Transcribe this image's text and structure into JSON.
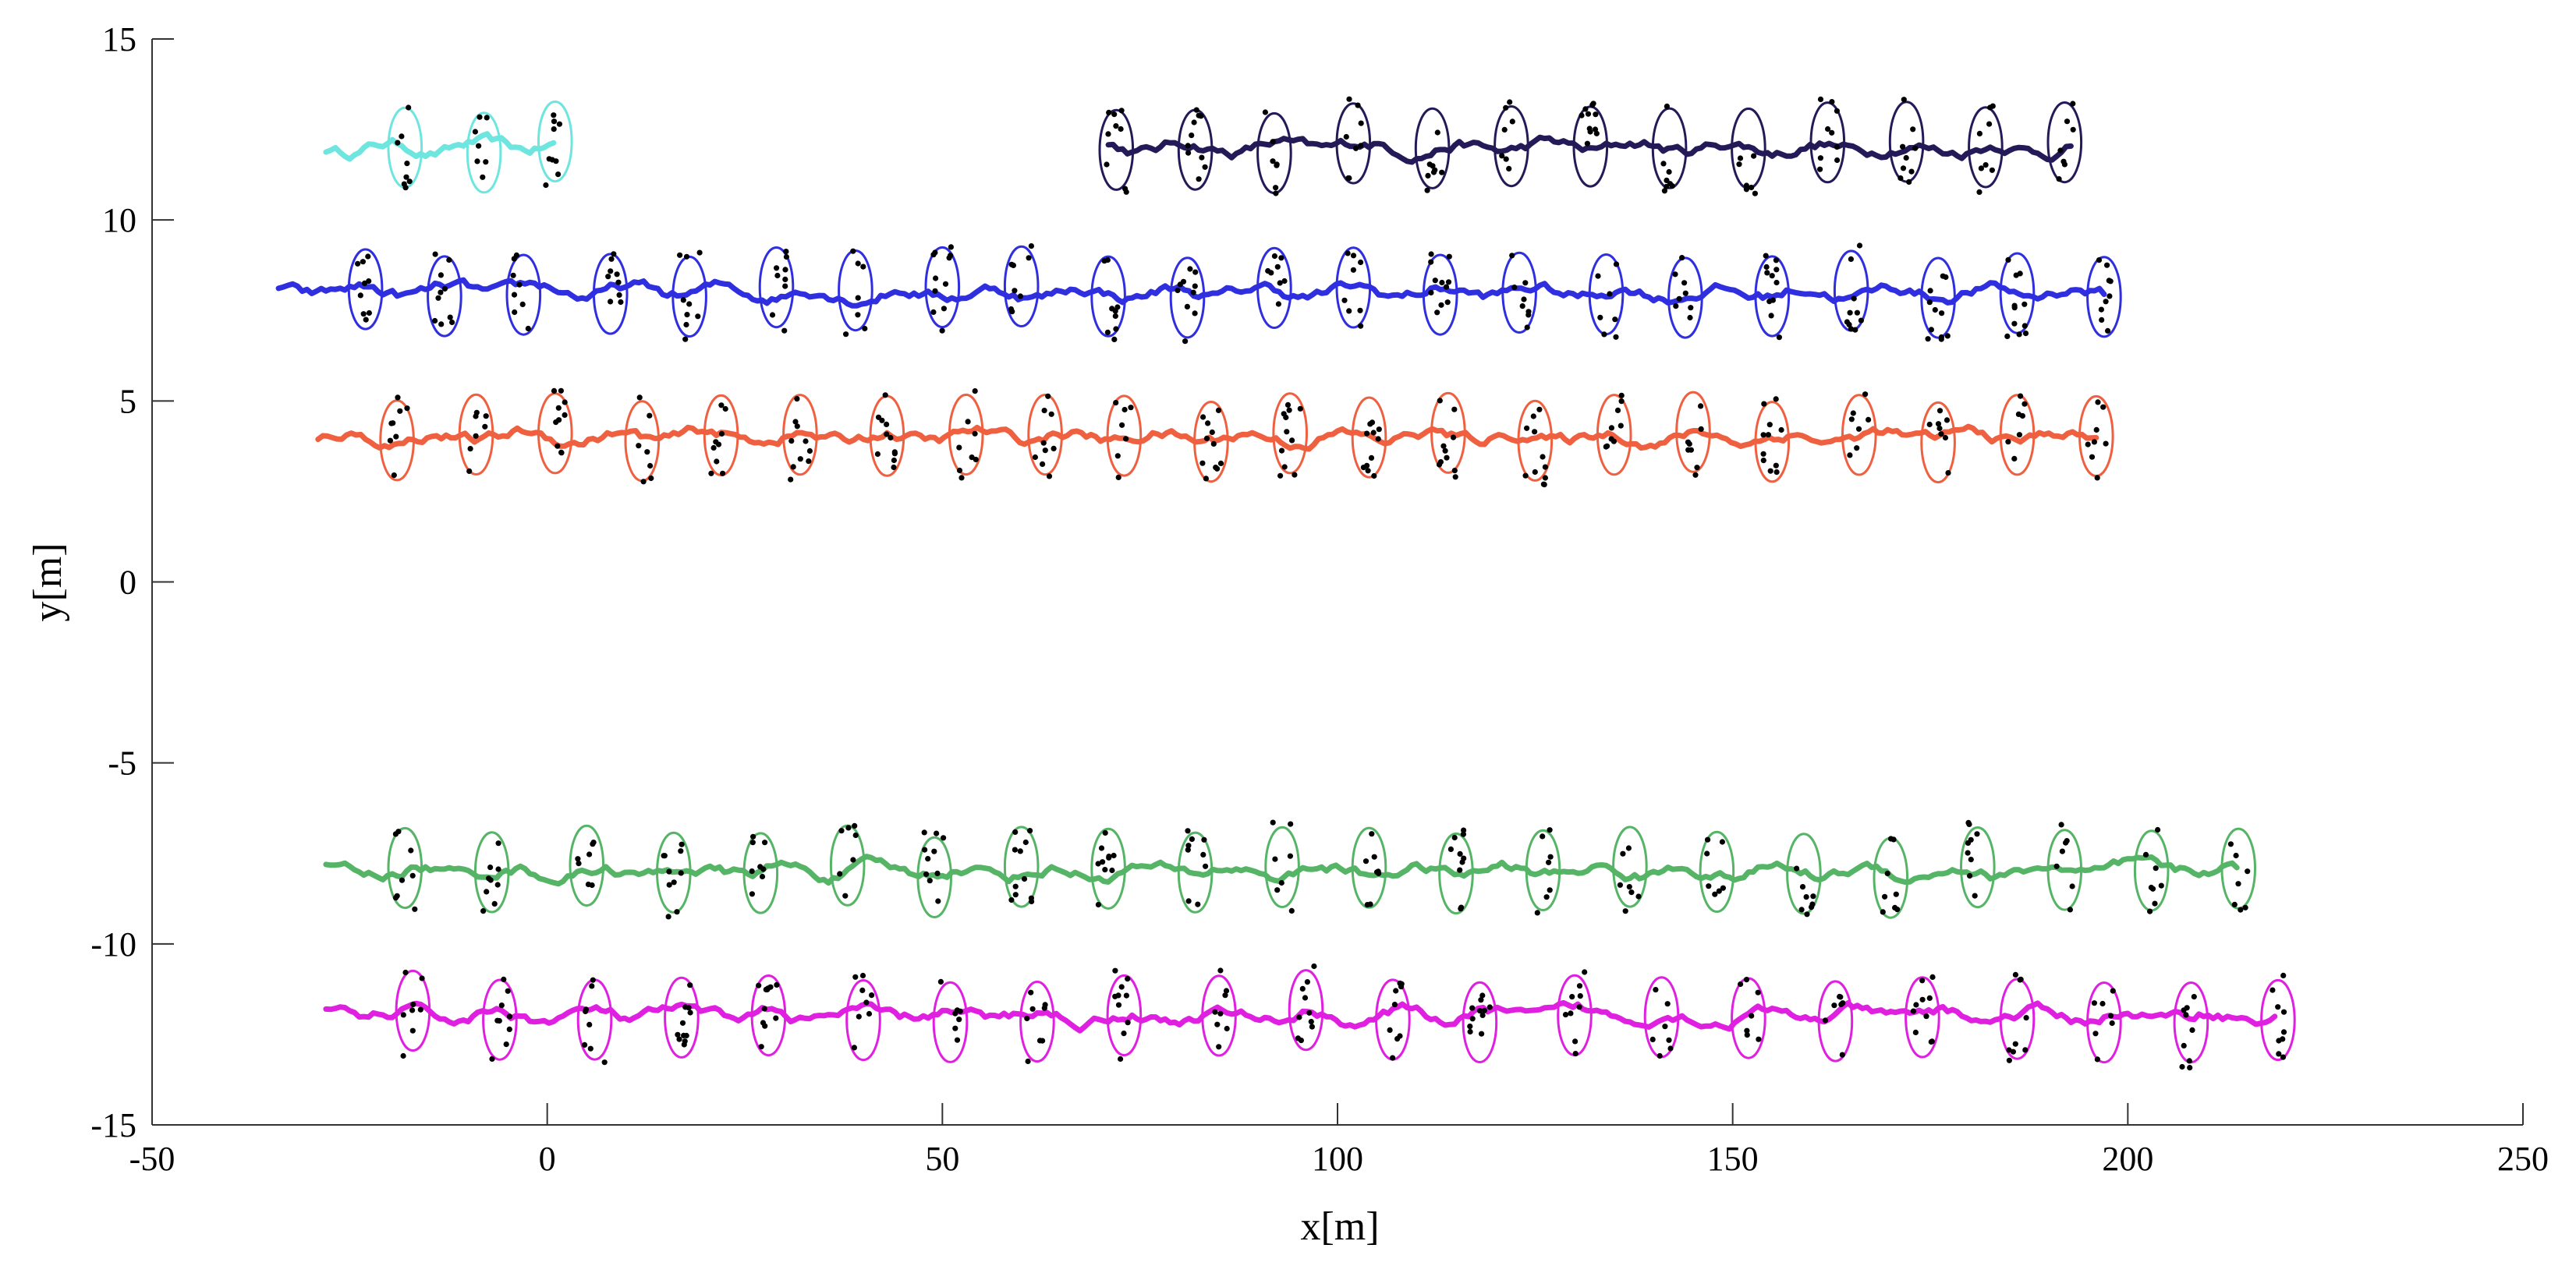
{
  "chart_data": {
    "type": "scatter",
    "title": "",
    "xlabel": "x[m]",
    "ylabel": "y[m]",
    "xlim": [
      -50,
      250
    ],
    "ylim": [
      -15,
      15
    ],
    "xticks": [
      "-50",
      "0",
      "50",
      "100",
      "150",
      "200",
      "250"
    ],
    "yticks": [
      "-15",
      "-10",
      "-5",
      "0",
      "5",
      "10",
      "15"
    ],
    "grid": false,
    "legend": "none",
    "ellipse_semi_axes_m": {
      "x": 2.1,
      "y": 1.1
    },
    "series": [
      {
        "color": "#6fe5e0",
        "y": 12,
        "track_x": [
          -28,
          1
        ],
        "ellipse_x": [
          -18,
          -8,
          1
        ]
      },
      {
        "color": "#241a58",
        "y": 12,
        "track_x": [
          71,
          193
        ],
        "ellipse_x": [
          72,
          82,
          92,
          102,
          112,
          122,
          132,
          142,
          152,
          162,
          172,
          182,
          192
        ]
      },
      {
        "color": "#2f2fe0",
        "y": 8,
        "track_x": [
          -34,
          197
        ],
        "ellipse_x": [
          -23,
          -13,
          -3,
          8,
          18,
          29,
          39,
          50,
          60,
          71,
          81,
          92,
          102,
          113,
          123,
          134,
          144,
          155,
          165,
          176,
          186,
          197
        ]
      },
      {
        "color": "#ef6040",
        "y": 4,
        "track_x": [
          -29,
          196
        ],
        "ellipse_x": [
          -19,
          -9,
          1,
          12,
          22,
          32,
          43,
          53,
          63,
          73,
          84,
          94,
          104,
          114,
          125,
          135,
          145,
          155,
          166,
          176,
          186,
          196
        ]
      },
      {
        "color": "#55b465",
        "y": -8,
        "track_x": [
          -28,
          214
        ],
        "ellipse_x": [
          -18,
          -7,
          5,
          16,
          27,
          38,
          49,
          60,
          71,
          82,
          93,
          104,
          115,
          126,
          137,
          148,
          159,
          170,
          181,
          192,
          203,
          214
        ]
      },
      {
        "color": "#e020e0",
        "y": -12,
        "track_x": [
          -28,
          219
        ],
        "ellipse_x": [
          -17,
          -6,
          6,
          17,
          28,
          40,
          51,
          62,
          73,
          85,
          96,
          107,
          118,
          130,
          141,
          152,
          163,
          174,
          186,
          197,
          208,
          219
        ]
      }
    ]
  }
}
